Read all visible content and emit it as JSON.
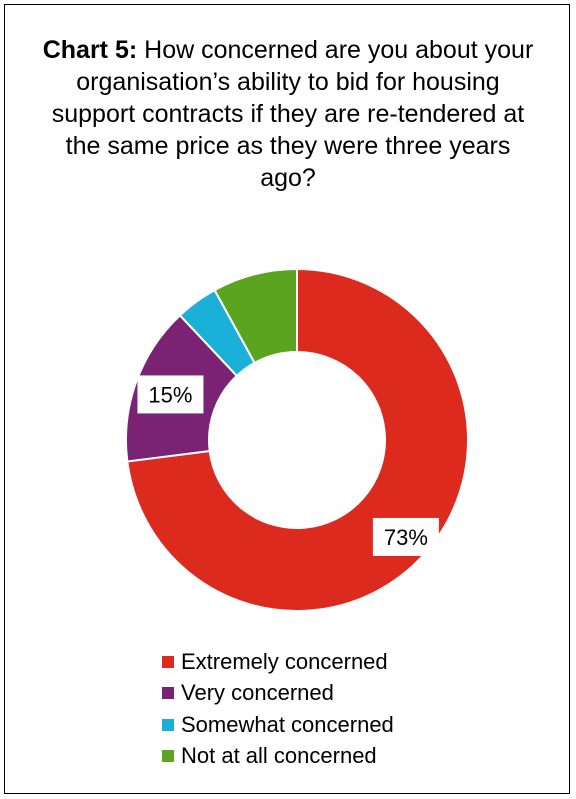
{
  "chart_data": {
    "type": "pie",
    "title_bold": "Chart 5:",
    "title": "How concerned are you about your organisation’s ability to bid for housing support contracts if they are re-tendered at the same price as they were three years ago?",
    "categories": [
      "Extremely concerned",
      "Very concerned",
      "Somewhat concerned",
      "Not at all concerned"
    ],
    "values": [
      73,
      15,
      4,
      8
    ],
    "colors": [
      "#dc2a1f",
      "#7a2273",
      "#1ab0d8",
      "#5aa51f"
    ],
    "data_labels": [
      "73%",
      "15%",
      "",
      ""
    ],
    "legend_position": "bottom"
  }
}
